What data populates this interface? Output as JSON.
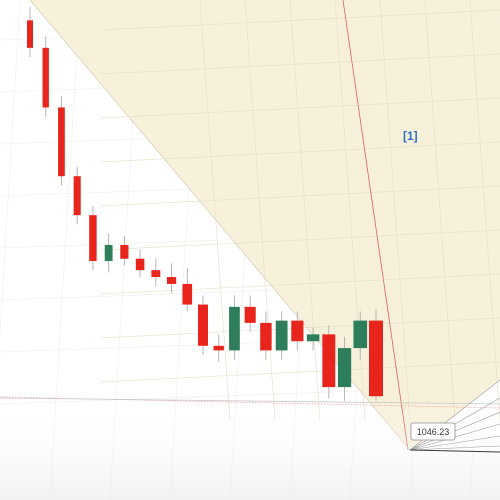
{
  "chart_data": {
    "type": "candlestick",
    "title": "",
    "xlabel": "",
    "ylabel": "",
    "grid": true,
    "colors": {
      "up": "#2e7d5b",
      "down": "#e8251c",
      "zone_fill": "#f6efd6",
      "zone_edge": "#e0605a",
      "background": "#ffffff"
    },
    "zone_label": "[1]",
    "price_label": "1046.23",
    "candles": [
      {
        "open": 1210,
        "high": 1216,
        "low": 1194,
        "close": 1198
      },
      {
        "open": 1198,
        "high": 1203,
        "low": 1168,
        "close": 1172
      },
      {
        "open": 1172,
        "high": 1177,
        "low": 1138,
        "close": 1142
      },
      {
        "open": 1142,
        "high": 1146,
        "low": 1121,
        "close": 1125
      },
      {
        "open": 1125,
        "high": 1129,
        "low": 1101,
        "close": 1105
      },
      {
        "open": 1105,
        "high": 1117,
        "low": 1100,
        "close": 1112
      },
      {
        "open": 1112,
        "high": 1116,
        "low": 1103,
        "close": 1106
      },
      {
        "open": 1106,
        "high": 1110,
        "low": 1098,
        "close": 1101
      },
      {
        "open": 1101,
        "high": 1106,
        "low": 1094,
        "close": 1098
      },
      {
        "open": 1098,
        "high": 1104,
        "low": 1091,
        "close": 1095
      },
      {
        "open": 1095,
        "high": 1102,
        "low": 1083,
        "close": 1086
      },
      {
        "open": 1086,
        "high": 1090,
        "low": 1064,
        "close": 1068
      },
      {
        "open": 1068,
        "high": 1073,
        "low": 1061,
        "close": 1066
      },
      {
        "open": 1066,
        "high": 1090,
        "low": 1062,
        "close": 1085
      },
      {
        "open": 1085,
        "high": 1090,
        "low": 1074,
        "close": 1078
      },
      {
        "open": 1078,
        "high": 1083,
        "low": 1062,
        "close": 1066
      },
      {
        "open": 1066,
        "high": 1083,
        "low": 1062,
        "close": 1079
      },
      {
        "open": 1079,
        "high": 1083,
        "low": 1066,
        "close": 1070
      },
      {
        "open": 1070,
        "high": 1076,
        "low": 1066,
        "close": 1073
      },
      {
        "open": 1073,
        "high": 1077,
        "low": 1045,
        "close": 1050
      },
      {
        "open": 1050,
        "high": 1072,
        "low": 1044,
        "close": 1067
      },
      {
        "open": 1067,
        "high": 1083,
        "low": 1062,
        "close": 1079
      },
      {
        "open": 1079,
        "high": 1084,
        "low": 1044,
        "close": 1046
      }
    ]
  }
}
